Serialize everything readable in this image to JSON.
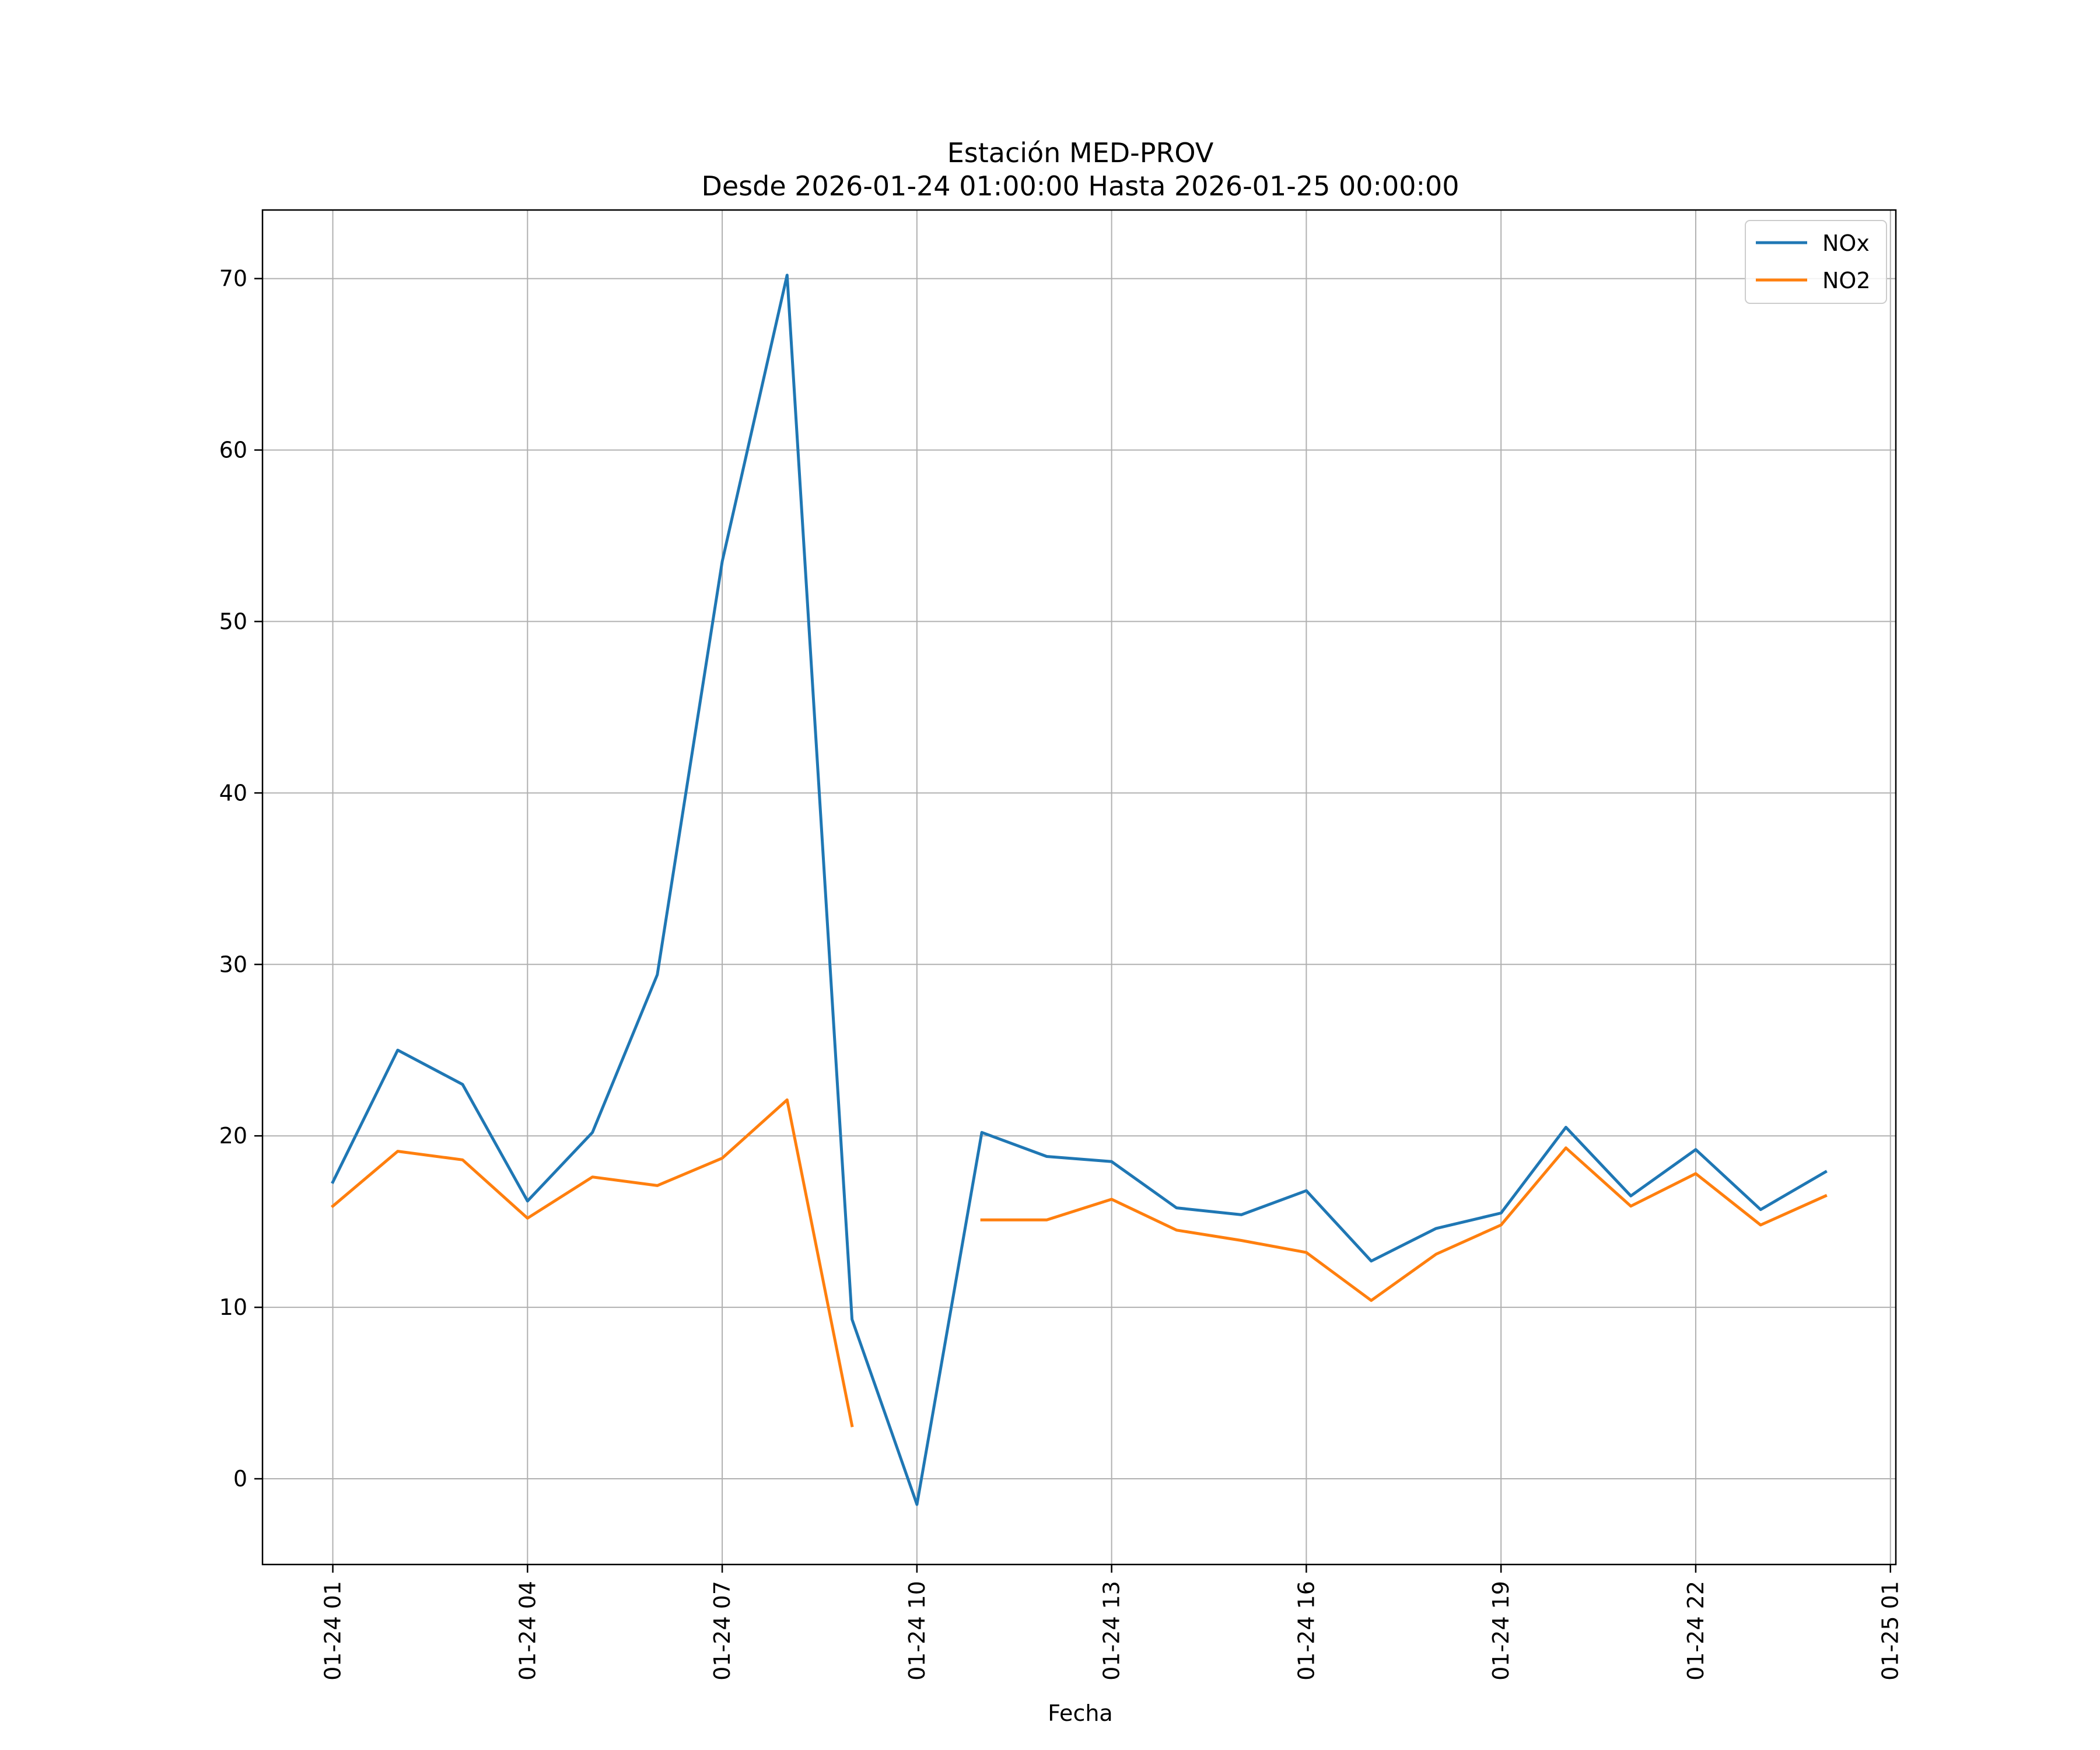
{
  "chart_data": {
    "type": "line",
    "title": "Estación MED-PROV",
    "subtitle": "Desde 2026-01-24 01:00:00 Hasta 2026-01-25 00:00:00",
    "xlabel": "Fecha",
    "ylabel": "",
    "x": [
      "2026-01-24 01:00",
      "2026-01-24 02:00",
      "2026-01-24 03:00",
      "2026-01-24 04:00",
      "2026-01-24 05:00",
      "2026-01-24 06:00",
      "2026-01-24 07:00",
      "2026-01-24 08:00",
      "2026-01-24 09:00",
      "2026-01-24 10:00",
      "2026-01-24 11:00",
      "2026-01-24 12:00",
      "2026-01-24 13:00",
      "2026-01-24 14:00",
      "2026-01-24 15:00",
      "2026-01-24 16:00",
      "2026-01-24 17:00",
      "2026-01-24 18:00",
      "2026-01-24 19:00",
      "2026-01-24 20:00",
      "2026-01-24 21:00",
      "2026-01-24 22:00",
      "2026-01-24 23:00",
      "2026-01-25 00:00"
    ],
    "x_tick_labels": [
      "01-24 01",
      "01-24 04",
      "01-24 07",
      "01-24 10",
      "01-24 13",
      "01-24 16",
      "01-24 19",
      "01-24 22",
      "01-25 01"
    ],
    "y_ticks": [
      0,
      10,
      20,
      30,
      40,
      50,
      60,
      70
    ],
    "xlim": [
      "2026-01-23 23:55",
      "2026-01-25 01:05"
    ],
    "ylim": [
      -5,
      74
    ],
    "grid": true,
    "legend_position": "top-right",
    "series": [
      {
        "name": "NOx",
        "color": "#1f77b4",
        "values": [
          17.3,
          25.0,
          23.0,
          16.2,
          20.2,
          29.4,
          53.5,
          70.2,
          9.3,
          -1.5,
          20.2,
          18.8,
          18.5,
          15.8,
          15.4,
          16.8,
          12.7,
          14.6,
          15.5,
          20.5,
          16.5,
          19.2,
          15.7,
          17.9
        ]
      },
      {
        "name": "NO2",
        "color": "#ff7f0e",
        "values": [
          15.9,
          19.1,
          18.6,
          15.2,
          17.6,
          17.1,
          18.7,
          22.1,
          3.1,
          null,
          15.1,
          15.1,
          16.3,
          14.5,
          13.9,
          13.2,
          10.4,
          13.1,
          14.8,
          19.3,
          15.9,
          17.8,
          14.8,
          16.5
        ]
      }
    ]
  }
}
